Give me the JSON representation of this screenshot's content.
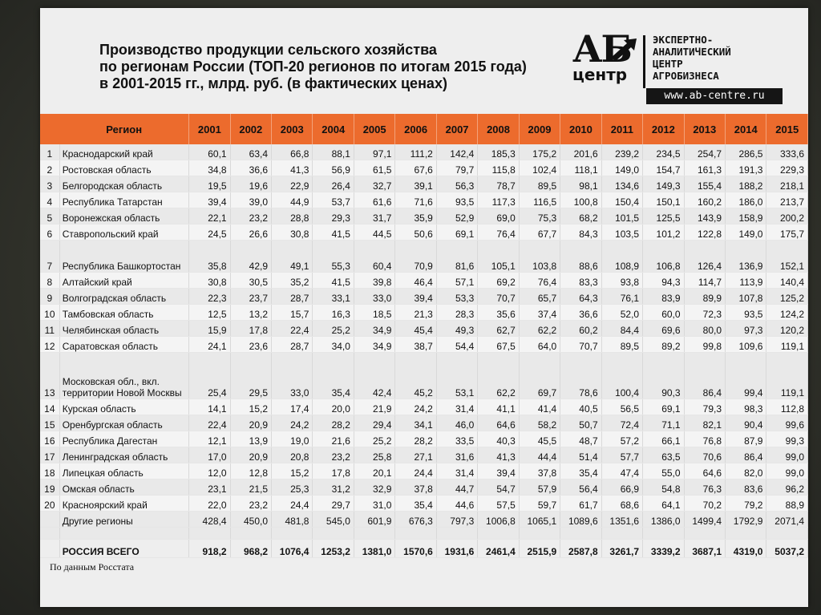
{
  "title": {
    "line1": "Производство продукции сельского хозяйства",
    "line2": "по регионам России (ТОП-20 регионов по итогам 2015 года)",
    "line3": "в 2001-2015 гг., млрд. руб. (в фактических ценах)"
  },
  "logo": {
    "mark_top": "АБ",
    "mark_bottom": "центр",
    "line1": "ЭКСПЕРТНО-",
    "line2": "АНАЛИТИЧЕСКИЙ",
    "line3": "ЦЕНТР",
    "line4": "АГРОБИЗНЕСА",
    "url": "www.ab-centre.ru"
  },
  "table": {
    "header_region": "Регион",
    "years": [
      "2001",
      "2002",
      "2003",
      "2004",
      "2005",
      "2006",
      "2007",
      "2008",
      "2009",
      "2010",
      "2011",
      "2012",
      "2013",
      "2014",
      "2015"
    ],
    "rows": [
      {
        "n": "1",
        "region": "Краснодарский край",
        "v": [
          "60,1",
          "63,4",
          "66,8",
          "88,1",
          "97,1",
          "111,2",
          "142,4",
          "185,3",
          "175,2",
          "201,6",
          "239,2",
          "234,5",
          "254,7",
          "286,5",
          "333,6"
        ]
      },
      {
        "n": "2",
        "region": "Ростовская область",
        "v": [
          "34,8",
          "36,6",
          "41,3",
          "56,9",
          "61,5",
          "67,6",
          "79,7",
          "115,8",
          "102,4",
          "118,1",
          "149,0",
          "154,7",
          "161,3",
          "191,3",
          "229,3"
        ]
      },
      {
        "n": "3",
        "region": "Белгородская область",
        "v": [
          "19,5",
          "19,6",
          "22,9",
          "26,4",
          "32,7",
          "39,1",
          "56,3",
          "78,7",
          "89,5",
          "98,1",
          "134,6",
          "149,3",
          "155,4",
          "188,2",
          "218,1"
        ]
      },
      {
        "n": "4",
        "region": "Республика Татарстан",
        "v": [
          "39,4",
          "39,0",
          "44,9",
          "53,7",
          "61,6",
          "71,6",
          "93,5",
          "117,3",
          "116,5",
          "100,8",
          "150,4",
          "150,1",
          "160,2",
          "186,0",
          "213,7"
        ]
      },
      {
        "n": "5",
        "region": "Воронежская область",
        "v": [
          "22,1",
          "23,2",
          "28,8",
          "29,3",
          "31,7",
          "35,9",
          "52,9",
          "69,0",
          "75,3",
          "68,2",
          "101,5",
          "125,5",
          "143,9",
          "158,9",
          "200,2"
        ]
      },
      {
        "n": "6",
        "region": "Ставропольский край",
        "v": [
          "24,5",
          "26,6",
          "30,8",
          "41,5",
          "44,5",
          "50,6",
          "69,1",
          "76,4",
          "67,7",
          "84,3",
          "103,5",
          "101,2",
          "122,8",
          "149,0",
          "175,7"
        ]
      },
      {
        "n": "7",
        "region": "Республика Башкортостан",
        "v": [
          "35,8",
          "42,9",
          "49,1",
          "55,3",
          "60,4",
          "70,9",
          "81,6",
          "105,1",
          "103,8",
          "88,6",
          "108,9",
          "106,8",
          "126,4",
          "136,9",
          "152,1"
        ]
      },
      {
        "n": "8",
        "region": "Алтайский край",
        "v": [
          "30,8",
          "30,5",
          "35,2",
          "41,5",
          "39,8",
          "46,4",
          "57,1",
          "69,2",
          "76,4",
          "83,3",
          "93,8",
          "94,3",
          "114,7",
          "113,9",
          "140,4"
        ]
      },
      {
        "n": "9",
        "region": "Волгоградская область",
        "v": [
          "22,3",
          "23,7",
          "28,7",
          "33,1",
          "33,0",
          "39,4",
          "53,3",
          "70,7",
          "65,7",
          "64,3",
          "76,1",
          "83,9",
          "89,9",
          "107,8",
          "125,2"
        ]
      },
      {
        "n": "10",
        "region": "Тамбовская область",
        "v": [
          "12,5",
          "13,2",
          "15,7",
          "16,3",
          "18,5",
          "21,3",
          "28,3",
          "35,6",
          "37,4",
          "36,6",
          "52,0",
          "60,0",
          "72,3",
          "93,5",
          "124,2"
        ]
      },
      {
        "n": "11",
        "region": "Челябинская область",
        "v": [
          "15,9",
          "17,8",
          "22,4",
          "25,2",
          "34,9",
          "45,4",
          "49,3",
          "62,7",
          "62,2",
          "60,2",
          "84,4",
          "69,6",
          "80,0",
          "97,3",
          "120,2"
        ]
      },
      {
        "n": "12",
        "region": "Саратовская область",
        "v": [
          "24,1",
          "23,6",
          "28,7",
          "34,0",
          "34,9",
          "38,7",
          "54,4",
          "67,5",
          "64,0",
          "70,7",
          "89,5",
          "89,2",
          "99,8",
          "109,6",
          "119,1"
        ]
      },
      {
        "n": "13",
        "region": "Московская обл., вкл. территории Новой Москвы",
        "v": [
          "25,4",
          "29,5",
          "33,0",
          "35,4",
          "42,4",
          "45,2",
          "53,1",
          "62,2",
          "69,7",
          "78,6",
          "100,4",
          "90,3",
          "86,4",
          "99,4",
          "119,1"
        ]
      },
      {
        "n": "14",
        "region": "Курская область",
        "v": [
          "14,1",
          "15,2",
          "17,4",
          "20,0",
          "21,9",
          "24,2",
          "31,4",
          "41,1",
          "41,4",
          "40,5",
          "56,5",
          "69,1",
          "79,3",
          "98,3",
          "112,8"
        ]
      },
      {
        "n": "15",
        "region": "Оренбургская область",
        "v": [
          "22,4",
          "20,9",
          "24,2",
          "28,2",
          "29,4",
          "34,1",
          "46,0",
          "64,6",
          "58,2",
          "50,7",
          "72,4",
          "71,1",
          "82,1",
          "90,4",
          "99,6"
        ]
      },
      {
        "n": "16",
        "region": "Республика Дагестан",
        "v": [
          "12,1",
          "13,9",
          "19,0",
          "21,6",
          "25,2",
          "28,2",
          "33,5",
          "40,3",
          "45,5",
          "48,7",
          "57,2",
          "66,1",
          "76,8",
          "87,9",
          "99,3"
        ]
      },
      {
        "n": "17",
        "region": "Ленинградская область",
        "v": [
          "17,0",
          "20,9",
          "20,8",
          "23,2",
          "25,8",
          "27,1",
          "31,6",
          "41,3",
          "44,4",
          "51,4",
          "57,7",
          "63,5",
          "70,6",
          "86,4",
          "99,0"
        ]
      },
      {
        "n": "18",
        "region": "Липецкая область",
        "v": [
          "12,0",
          "12,8",
          "15,2",
          "17,8",
          "20,1",
          "24,4",
          "31,4",
          "39,4",
          "37,8",
          "35,4",
          "47,4",
          "55,0",
          "64,6",
          "82,0",
          "99,0"
        ]
      },
      {
        "n": "19",
        "region": "Омская область",
        "v": [
          "23,1",
          "21,5",
          "25,3",
          "31,2",
          "32,9",
          "37,8",
          "44,7",
          "54,7",
          "57,9",
          "56,4",
          "66,9",
          "54,8",
          "76,3",
          "83,6",
          "96,2"
        ]
      },
      {
        "n": "20",
        "region": "Красноярский край",
        "v": [
          "22,0",
          "23,2",
          "24,4",
          "29,7",
          "31,0",
          "35,4",
          "44,6",
          "57,5",
          "59,7",
          "61,7",
          "68,6",
          "64,1",
          "70,2",
          "79,2",
          "88,9"
        ]
      }
    ],
    "other": {
      "region": "Другие регионы",
      "v": [
        "428,4",
        "450,0",
        "481,8",
        "545,0",
        "601,9",
        "676,3",
        "797,3",
        "1006,8",
        "1065,1",
        "1089,6",
        "1351,6",
        "1386,0",
        "1499,4",
        "1792,9",
        "2071,4"
      ]
    },
    "total": {
      "region": "РОССИЯ ВСЕГО",
      "v": [
        "918,2",
        "968,2",
        "1076,4",
        "1253,2",
        "1381,0",
        "1570,6",
        "1931,6",
        "2461,4",
        "2515,9",
        "2587,8",
        "3261,7",
        "3339,2",
        "3687,1",
        "4319,0",
        "5037,2"
      ]
    }
  },
  "source": "По данным Росстата",
  "colors": {
    "header_bg": "#ec6b2d",
    "sheet_bg": "#eeeeee",
    "backdrop": "#33342c"
  }
}
